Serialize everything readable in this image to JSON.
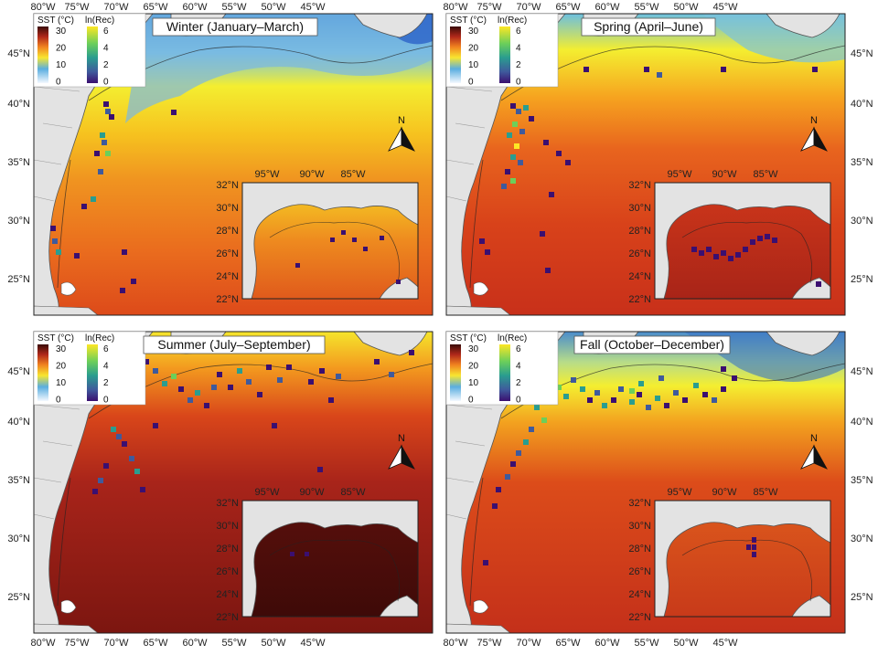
{
  "panels": [
    {
      "title": "Winter (January–March)",
      "season": "winter"
    },
    {
      "title": "Spring (April–June)",
      "season": "spring"
    },
    {
      "title": "Summer (July–September)",
      "season": "summer"
    },
    {
      "title": "Fall (October–December)",
      "season": "fall"
    }
  ],
  "legend": {
    "sst_title": "SST (°C)",
    "sst_ticks": [
      "30",
      "20",
      "10",
      "0"
    ],
    "rec_title": "ln(Rec)",
    "rec_ticks": [
      "6",
      "4",
      "2",
      "0"
    ]
  },
  "main_axes": {
    "lon_labels": [
      "80°W",
      "75°W",
      "70°W",
      "65°W",
      "60°W",
      "55°W",
      "50°W",
      "45°W"
    ],
    "lat_labels": [
      "45°N",
      "40°N",
      "35°N",
      "30°N",
      "25°N"
    ]
  },
  "inset_axes": {
    "lon_labels": [
      "95°W",
      "90°W",
      "85°W"
    ],
    "lat_labels": [
      "32°N",
      "30°N",
      "28°N",
      "26°N",
      "24°N",
      "22°N"
    ]
  },
  "north_arrow_label": "N",
  "colors": {
    "sst_scale": [
      "#f7f7f7",
      "#2c7fd0",
      "#7ec7e0",
      "#fbef2b",
      "#f59a1a",
      "#d8421a",
      "#8b1a10",
      "#3a0c08"
    ],
    "rec_scale": [
      "#3b0f70",
      "#3f5a9c",
      "#2a9d8f",
      "#6ccf5a",
      "#fde725"
    ],
    "land": "#e3e3e3",
    "coast": "#555555"
  }
}
